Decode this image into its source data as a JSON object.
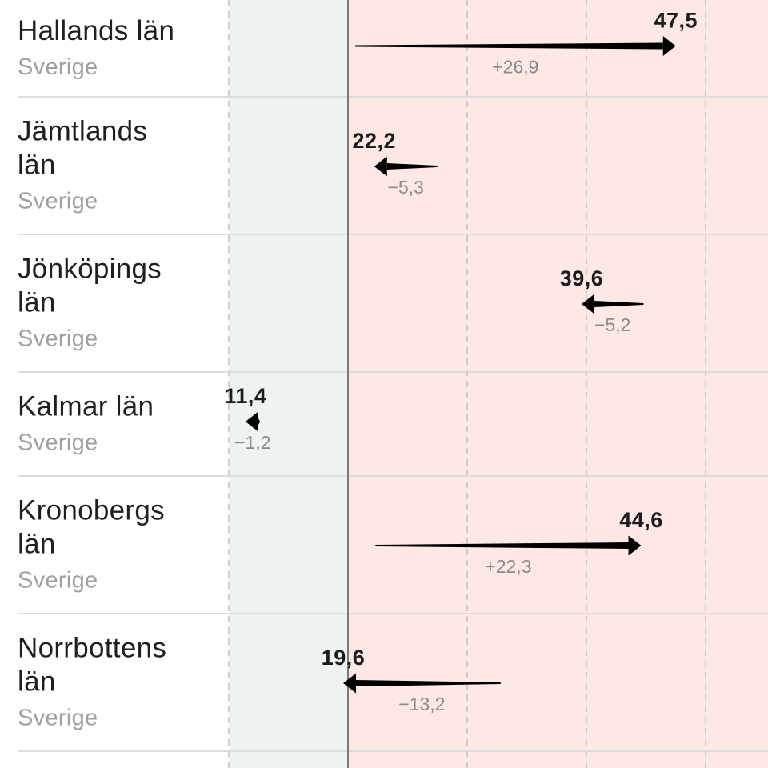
{
  "colors": {
    "low_zone": "#edf3f0",
    "high_zone": "#fde8e6",
    "row_divider": "#dcdcdc",
    "gridline": "#c4c4c4",
    "threshold_line": "#7a7a7a",
    "arrow": "#000000"
  },
  "chart_data": {
    "type": "arrow",
    "rows": [
      {
        "name_lines": [
          "Hallands län"
        ],
        "sub": "Sverige",
        "value": 47.5,
        "value_label": "47,5",
        "change": 26.9,
        "change_label": "+26,9"
      },
      {
        "name_lines": [
          "Jämtlands",
          "län"
        ],
        "sub": "Sverige",
        "value": 22.2,
        "value_label": "22,2",
        "change": -5.3,
        "change_label": "−5,3"
      },
      {
        "name_lines": [
          "Jönköpings",
          "län"
        ],
        "sub": "Sverige",
        "value": 39.6,
        "value_label": "39,6",
        "change": -5.2,
        "change_label": "−5,2"
      },
      {
        "name_lines": [
          "Kalmar län"
        ],
        "sub": "Sverige",
        "value": 11.4,
        "value_label": "11,4",
        "change": -1.2,
        "change_label": "−1,2"
      },
      {
        "name_lines": [
          "Kronobergs",
          "län"
        ],
        "sub": "Sverige",
        "value": 44.6,
        "value_label": "44,6",
        "change": 22.3,
        "change_label": "+22,3"
      },
      {
        "name_lines": [
          "Norrbottens",
          "län"
        ],
        "sub": "Sverige",
        "value": 19.6,
        "value_label": "19,6",
        "change": -13.2,
        "change_label": "−13,2"
      }
    ],
    "threshold": 20,
    "gridlines": [
      10,
      20,
      30,
      40,
      50,
      60,
      70
    ],
    "xlim": [
      0,
      70
    ],
    "low_zone": [
      10,
      20
    ],
    "high_zone_start": 20
  }
}
